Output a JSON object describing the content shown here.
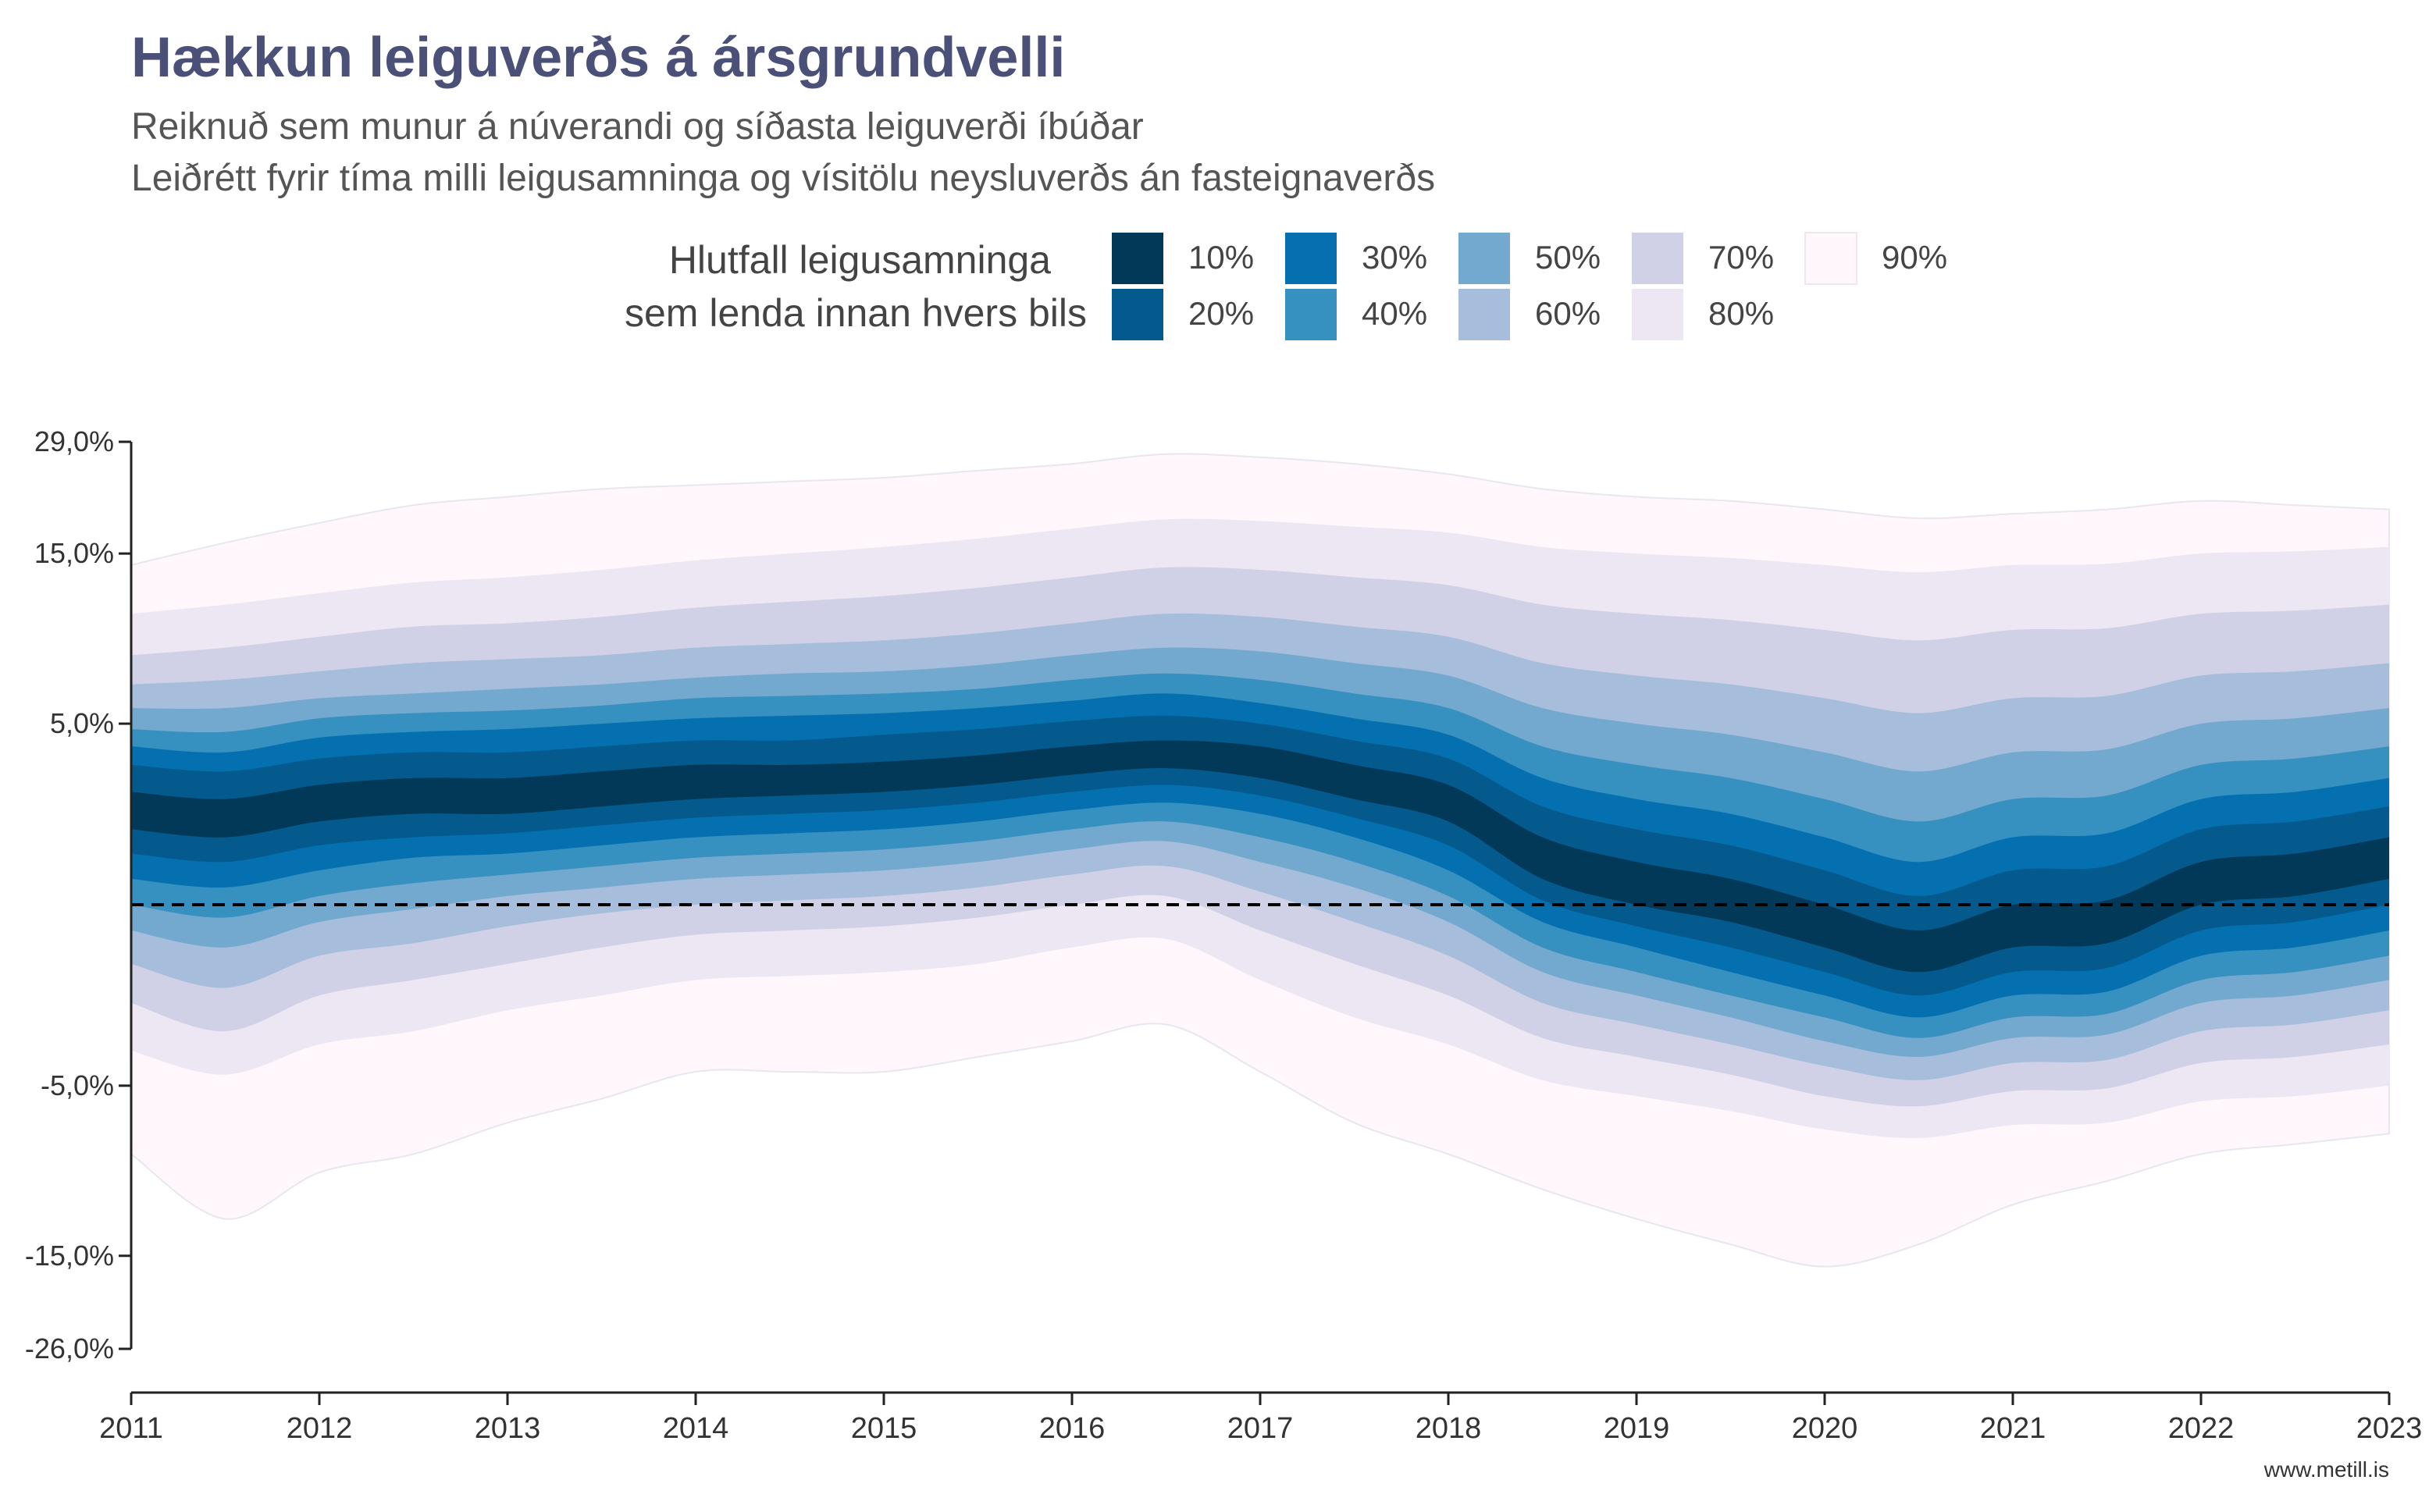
{
  "chart_data": {
    "type": "area",
    "title": "Hækkun leiguverðs á ársgrundvelli",
    "subtitle_lines": [
      "Reiknuð sem munur á núverandi og síðasta leiguverði íbúðar",
      "Leiðrétt fyrir tíma milli leigusamninga og vísitölu neysluverðs án fasteignaverðs"
    ],
    "legend": {
      "title_lines": [
        "Hlutfall leigusamninga",
        "sem lenda innan hvers bils"
      ],
      "position": "top",
      "entries": [
        {
          "label": "10%",
          "color": "#023858"
        },
        {
          "label": "20%",
          "color": "#045a8d"
        },
        {
          "label": "30%",
          "color": "#0570b0"
        },
        {
          "label": "40%",
          "color": "#3690c0"
        },
        {
          "label": "50%",
          "color": "#74a9cf"
        },
        {
          "label": "60%",
          "color": "#a6bddb"
        },
        {
          "label": "70%",
          "color": "#d0d1e6"
        },
        {
          "label": "80%",
          "color": "#ece7f2"
        },
        {
          "label": "90%",
          "color": "#fff7fb"
        }
      ]
    },
    "x_ticks": [
      "2011",
      "2012",
      "2013",
      "2014",
      "2015",
      "2016",
      "2017",
      "2018",
      "2019",
      "2020",
      "2021",
      "2022",
      "2023"
    ],
    "x_range": [
      2011,
      2023
    ],
    "y_ticks": [
      {
        "value": 29,
        "label": "29,0%"
      },
      {
        "value": 15,
        "label": "15,0%"
      },
      {
        "value": 5,
        "label": "5,0%"
      },
      {
        "value": -5,
        "label": "-5,0%"
      },
      {
        "value": -15,
        "label": "-15,0%"
      },
      {
        "value": -26,
        "label": "-26,0%"
      }
    ],
    "y_scale": "pseudo-log",
    "y_range": [
      -26,
      29
    ],
    "grid": false,
    "reference_line": {
      "y": 0,
      "style": "dashed"
    },
    "x": [
      2011,
      2011.5,
      2012,
      2012.5,
      2013,
      2013.5,
      2014,
      2014.5,
      2015,
      2015.5,
      2016,
      2016.5,
      2017,
      2017.5,
      2018,
      2018.5,
      2019,
      2019.5,
      2020,
      2020.5,
      2021,
      2021.5,
      2022,
      2022.5,
      2023
    ],
    "median": [
      2.2,
      2.0,
      2.4,
      2.6,
      2.6,
      2.8,
      3.0,
      3.0,
      3.1,
      3.3,
      3.6,
      3.8,
      3.6,
      3.0,
      2.4,
      1.0,
      0.4,
      0.0,
      -0.6,
      -1.2,
      -0.6,
      -0.5,
      0.4,
      0.6,
      1.0
    ],
    "bands": [
      {
        "label": "10%",
        "lower": [
          1.8,
          1.6,
          2.0,
          2.2,
          2.2,
          2.4,
          2.6,
          2.7,
          2.8,
          3.0,
          3.3,
          3.5,
          3.2,
          2.6,
          2.0,
          0.6,
          0.0,
          -0.4,
          -1.0,
          -1.6,
          -1.0,
          -0.9,
          0.0,
          0.2,
          0.6
        ],
        "upper": [
          2.8,
          2.6,
          3.0,
          3.2,
          3.2,
          3.4,
          3.6,
          3.6,
          3.7,
          3.9,
          4.2,
          4.4,
          4.2,
          3.6,
          3.0,
          1.6,
          1.0,
          0.6,
          0.0,
          -0.6,
          0.0,
          0.1,
          1.0,
          1.2,
          1.6
        ]
      },
      {
        "label": "20%",
        "lower": [
          1.2,
          1.0,
          1.4,
          1.6,
          1.7,
          1.9,
          2.1,
          2.2,
          2.3,
          2.5,
          2.8,
          3.0,
          2.7,
          2.1,
          1.4,
          0.1,
          -0.5,
          -1.0,
          -1.6,
          -2.2,
          -1.6,
          -1.5,
          -0.6,
          -0.4,
          0.0
        ],
        "upper": [
          3.6,
          3.4,
          3.8,
          4.0,
          4.0,
          4.2,
          4.4,
          4.4,
          4.6,
          4.8,
          5.1,
          5.3,
          5.0,
          4.4,
          3.8,
          2.4,
          1.8,
          1.4,
          0.8,
          0.2,
          0.8,
          0.9,
          1.8,
          2.0,
          2.4
        ]
      },
      {
        "label": "30%",
        "lower": [
          0.6,
          0.4,
          0.8,
          1.1,
          1.2,
          1.4,
          1.6,
          1.7,
          1.8,
          2.0,
          2.3,
          2.5,
          2.2,
          1.6,
          0.8,
          -0.4,
          -1.0,
          -1.6,
          -2.2,
          -2.8,
          -2.2,
          -2.1,
          -1.2,
          -1.0,
          -0.6
        ],
        "upper": [
          4.2,
          4.0,
          4.5,
          4.7,
          4.8,
          5.0,
          5.2,
          5.3,
          5.4,
          5.6,
          5.9,
          6.2,
          5.8,
          5.2,
          4.6,
          3.2,
          2.6,
          2.2,
          1.6,
          1.0,
          1.6,
          1.7,
          2.6,
          2.8,
          3.2
        ]
      },
      {
        "label": "40%",
        "lower": [
          0.0,
          -0.3,
          0.2,
          0.5,
          0.7,
          0.9,
          1.1,
          1.2,
          1.3,
          1.5,
          1.8,
          2.0,
          1.6,
          1.0,
          0.2,
          -1.0,
          -1.6,
          -2.2,
          -2.8,
          -3.4,
          -2.8,
          -2.7,
          -1.8,
          -1.6,
          -1.2
        ],
        "upper": [
          4.8,
          4.7,
          5.2,
          5.4,
          5.5,
          5.7,
          6.0,
          6.1,
          6.2,
          6.4,
          6.8,
          7.1,
          6.8,
          6.2,
          5.6,
          4.2,
          3.6,
          3.2,
          2.6,
          2.0,
          2.6,
          2.7,
          3.6,
          3.8,
          4.2
        ]
      },
      {
        "label": "50%",
        "lower": [
          -0.6,
          -1.0,
          -0.4,
          -0.1,
          0.2,
          0.4,
          0.6,
          0.7,
          0.8,
          1.0,
          1.3,
          1.5,
          1.0,
          0.4,
          -0.4,
          -1.6,
          -2.2,
          -2.8,
          -3.5,
          -4.0,
          -3.4,
          -3.3,
          -2.4,
          -2.2,
          -1.8
        ],
        "upper": [
          5.6,
          5.6,
          6.0,
          6.2,
          6.4,
          6.6,
          6.9,
          7.1,
          7.2,
          7.5,
          8.0,
          8.4,
          8.2,
          7.6,
          7.0,
          5.6,
          5.0,
          4.6,
          4.0,
          3.4,
          4.0,
          4.1,
          5.0,
          5.2,
          5.6
        ]
      },
      {
        "label": "60%",
        "lower": [
          -1.4,
          -2.0,
          -1.2,
          -0.9,
          -0.5,
          -0.2,
          0.0,
          0.1,
          0.2,
          0.4,
          0.7,
          0.9,
          0.3,
          -0.4,
          -1.2,
          -2.4,
          -3.0,
          -3.6,
          -4.3,
          -4.8,
          -4.2,
          -4.1,
          -3.2,
          -3.0,
          -2.6
        ],
        "upper": [
          6.6,
          6.8,
          7.2,
          7.6,
          7.8,
          8.0,
          8.4,
          8.6,
          8.8,
          9.2,
          9.8,
          10.4,
          10.2,
          9.6,
          9.0,
          7.6,
          7.0,
          6.6,
          6.0,
          5.4,
          6.0,
          6.1,
          7.0,
          7.2,
          7.6
        ]
      },
      {
        "label": "70%",
        "lower": [
          -2.4,
          -3.2,
          -2.2,
          -1.8,
          -1.4,
          -1.0,
          -0.7,
          -0.6,
          -0.5,
          -0.3,
          0.0,
          0.2,
          -0.6,
          -1.4,
          -2.2,
          -3.4,
          -4.0,
          -4.6,
          -5.4,
          -5.8,
          -5.2,
          -5.1,
          -4.2,
          -4.0,
          -3.6
        ],
        "upper": [
          8.0,
          8.4,
          9.0,
          9.6,
          9.8,
          10.2,
          10.8,
          11.2,
          11.6,
          12.2,
          13.0,
          13.8,
          13.6,
          13.0,
          12.4,
          11.0,
          10.4,
          10.0,
          9.4,
          8.8,
          9.4,
          9.5,
          10.4,
          10.6,
          11.0
        ]
      },
      {
        "label": "80%",
        "lower": [
          -3.8,
          -4.6,
          -3.6,
          -3.2,
          -2.6,
          -2.2,
          -1.8,
          -1.7,
          -1.6,
          -1.4,
          -1.0,
          -0.8,
          -1.8,
          -2.8,
          -3.6,
          -4.8,
          -5.4,
          -6.0,
          -6.8,
          -7.2,
          -6.6,
          -6.5,
          -5.6,
          -5.4,
          -5.0
        ],
        "upper": [
          10.4,
          11.0,
          11.8,
          12.6,
          13.0,
          13.6,
          14.4,
          15.0,
          15.6,
          16.4,
          17.4,
          18.4,
          18.2,
          17.6,
          17.0,
          15.6,
          15.0,
          14.6,
          14.0,
          13.4,
          14.0,
          14.1,
          15.0,
          15.2,
          15.6
        ]
      },
      {
        "label": "90%",
        "lower": [
          -8.0,
          -12.0,
          -9.0,
          -8.0,
          -6.5,
          -5.5,
          -4.5,
          -4.5,
          -4.5,
          -4.0,
          -3.5,
          -3.0,
          -4.5,
          -6.5,
          -8.0,
          -10.0,
          -12.0,
          -14.0,
          -16.0,
          -14.0,
          -11.0,
          -9.5,
          -8.0,
          -7.5,
          -7.0
        ],
        "upper": [
          14.0,
          16.0,
          18.0,
          20.0,
          21.0,
          22.0,
          22.5,
          23.0,
          23.5,
          24.5,
          25.5,
          27.0,
          26.5,
          25.5,
          24.0,
          22.0,
          21.0,
          20.5,
          19.5,
          18.5,
          19.0,
          19.5,
          20.5,
          20.0,
          19.5
        ]
      }
    ]
  },
  "caption": "www.metill.is"
}
